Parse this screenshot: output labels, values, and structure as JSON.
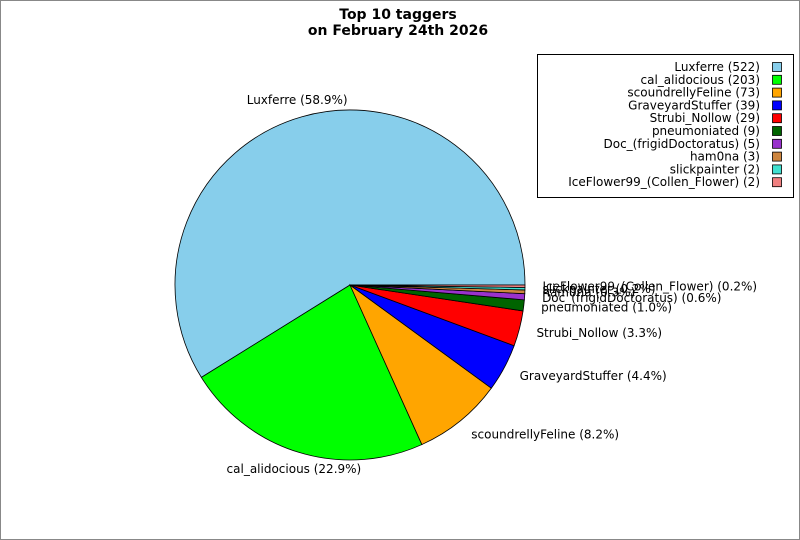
{
  "chart_data": {
    "type": "pie",
    "title": [
      "Top 10 taggers",
      "on February 24th 2026"
    ],
    "categories": [
      "Luxferre (522)",
      "cal_alidocious (203)",
      "scoundrellyFeline (73)",
      "GraveyardStuffer (39)",
      "Strubi_Nollow (29)",
      "pneumoniated (9)",
      "Doc_(frigidDoctoratus) (5)",
      "ham0na (3)",
      "slickpainter (2)",
      "IceFlower99_(Collen_Flower) (2)"
    ],
    "values": [
      522,
      203,
      73,
      39,
      29,
      9,
      5,
      3,
      2,
      2
    ],
    "value_labels": [
      "Luxferre (58.9%)",
      "cal_alidocious (22.9%)",
      "scoundrellyFeline (8.2%)",
      "GraveyardStuffer (4.4%)",
      "Strubi_Nollow (3.3%)",
      "pneumoniated (1.0%)",
      "Doc_(frigidDoctoratus) (0.6%)",
      "ham0na (0.3%)",
      "slickpainter (0.2%)",
      "IceFlower99_(Collen_Flower) (0.2%)"
    ],
    "colors": [
      "#87ceeb",
      "#00ff00",
      "#ffa500",
      "#0000ff",
      "#ff0000",
      "#006400",
      "#9932cc",
      "#cd853f",
      "#40e0d0",
      "#f08080"
    ],
    "legend": "upper right"
  }
}
